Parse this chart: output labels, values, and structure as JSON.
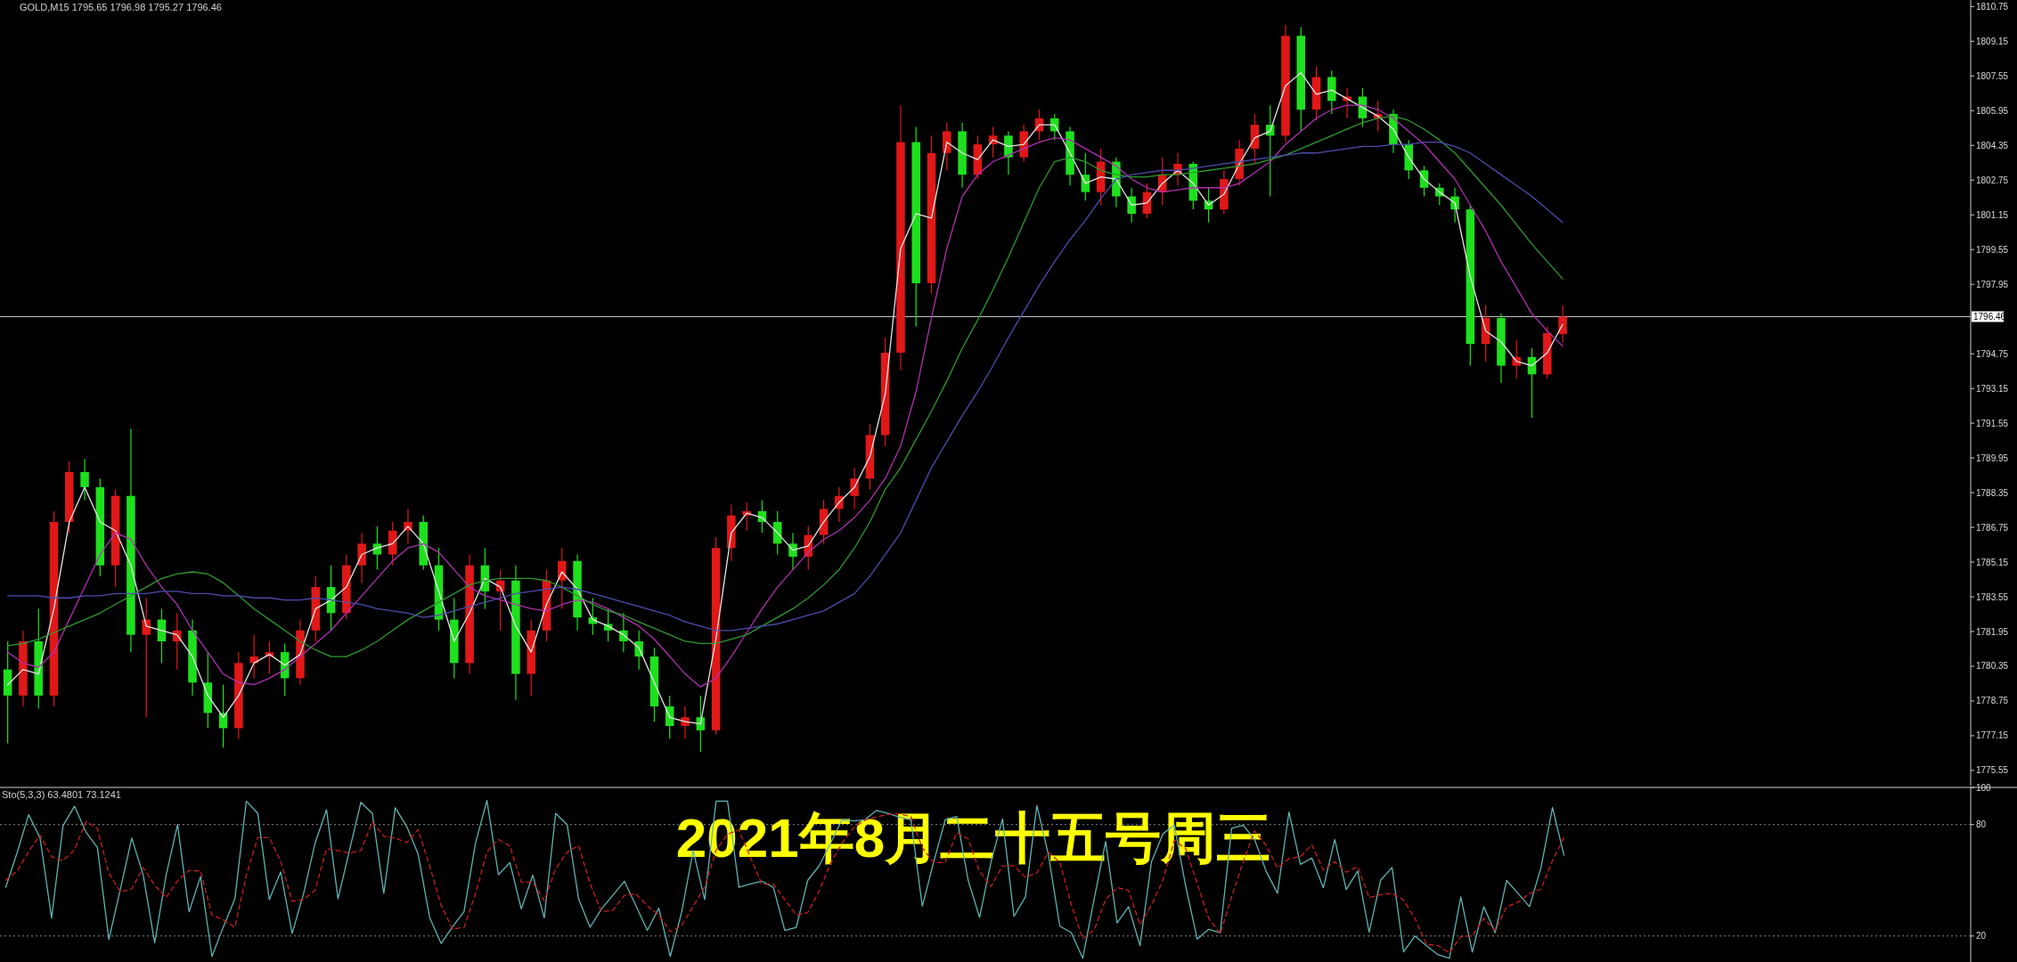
{
  "chart_data": [
    {
      "type": "candlestick",
      "title": "GOLD,M15  1795.65 1796.98 1795.27 1796.46",
      "categories": [
        null,
        null,
        null,
        null,
        null,
        null,
        null,
        null,
        null,
        null,
        null,
        null,
        null,
        null,
        null,
        null,
        null,
        null,
        null,
        null,
        null,
        null,
        null,
        null,
        null,
        null,
        null,
        null,
        null,
        null,
        null,
        null,
        null,
        null,
        null,
        null,
        null,
        null,
        null,
        null,
        null,
        null,
        null,
        null,
        null,
        null,
        null,
        null,
        null,
        null,
        null,
        null,
        null,
        null,
        null,
        null,
        null,
        null,
        null,
        null,
        null,
        null,
        null,
        null,
        null,
        null,
        null,
        null,
        null,
        null,
        null,
        null,
        null,
        null,
        null,
        null,
        null,
        null,
        null,
        null,
        null,
        null,
        null,
        null,
        null,
        null,
        null,
        null,
        null,
        null,
        null,
        null,
        null,
        null,
        null,
        null,
        null,
        null,
        null,
        null,
        null,
        null,
        null,
        null,
        null,
        null,
        null,
        null,
        null,
        null,
        null,
        null,
        null,
        null,
        null,
        null,
        null,
        null,
        null,
        null,
        null,
        null,
        null,
        null,
        null,
        null,
        null,
        null
      ],
      "ohlc": [
        [
          1780.2,
          1781.5,
          1776.8,
          1779.0
        ],
        [
          1779.0,
          1782.0,
          1778.5,
          1781.5
        ],
        [
          1781.5,
          1783.0,
          1778.4,
          1779.0
        ],
        [
          1779.0,
          1787.5,
          1778.5,
          1787.0
        ],
        [
          1787.0,
          1789.8,
          1786.5,
          1789.3
        ],
        [
          1789.3,
          1789.9,
          1788.0,
          1788.6
        ],
        [
          1788.6,
          1789.0,
          1784.5,
          1785.0
        ],
        [
          1785.0,
          1788.5,
          1784.0,
          1788.2
        ],
        [
          1788.2,
          1791.3,
          1781.0,
          1781.8
        ],
        [
          1781.8,
          1783.5,
          1778.0,
          1782.5
        ],
        [
          1782.5,
          1783.0,
          1780.5,
          1781.5
        ],
        [
          1781.5,
          1782.8,
          1780.2,
          1782.0
        ],
        [
          1782.0,
          1782.5,
          1779.0,
          1779.6
        ],
        [
          1779.6,
          1781.0,
          1777.5,
          1778.2
        ],
        [
          1778.2,
          1779.5,
          1776.6,
          1777.5
        ],
        [
          1777.5,
          1781.0,
          1777.0,
          1780.5
        ],
        [
          1780.5,
          1781.8,
          1779.8,
          1780.8
        ],
        [
          1780.8,
          1781.5,
          1780.0,
          1781.0
        ],
        [
          1781.0,
          1781.4,
          1779.0,
          1779.8
        ],
        [
          1779.8,
          1782.5,
          1779.5,
          1782.0
        ],
        [
          1782.0,
          1784.5,
          1781.5,
          1784.0
        ],
        [
          1784.0,
          1785.0,
          1782.0,
          1782.8
        ],
        [
          1782.8,
          1785.5,
          1782.5,
          1785.0
        ],
        [
          1785.0,
          1786.5,
          1784.2,
          1786.0
        ],
        [
          1786.0,
          1786.8,
          1784.8,
          1785.5
        ],
        [
          1785.5,
          1787.0,
          1785.0,
          1786.6
        ],
        [
          1786.6,
          1787.6,
          1786.0,
          1787.0
        ],
        [
          1787.0,
          1787.3,
          1784.8,
          1785.0
        ],
        [
          1785.0,
          1785.8,
          1782.0,
          1782.5
        ],
        [
          1782.5,
          1783.5,
          1779.8,
          1780.5
        ],
        [
          1780.5,
          1785.5,
          1780.0,
          1785.0
        ],
        [
          1785.0,
          1785.8,
          1783.0,
          1783.8
        ],
        [
          1783.8,
          1784.8,
          1782.0,
          1784.3
        ],
        [
          1784.3,
          1785.0,
          1778.8,
          1780.0
        ],
        [
          1780.0,
          1782.5,
          1779.0,
          1782.0
        ],
        [
          1782.0,
          1784.8,
          1781.5,
          1784.3
        ],
        [
          1784.3,
          1785.8,
          1783.0,
          1785.2
        ],
        [
          1785.2,
          1785.5,
          1782.0,
          1782.6
        ],
        [
          1782.6,
          1783.5,
          1781.8,
          1782.3
        ],
        [
          1782.3,
          1783.0,
          1781.5,
          1782.0
        ],
        [
          1782.0,
          1782.8,
          1781.0,
          1781.5
        ],
        [
          1781.5,
          1782.0,
          1780.2,
          1780.8
        ],
        [
          1780.8,
          1781.2,
          1777.8,
          1778.5
        ],
        [
          1778.5,
          1779.0,
          1777.0,
          1777.6
        ],
        [
          1777.6,
          1778.5,
          1777.0,
          1778.0
        ],
        [
          1778.0,
          1779.0,
          1776.4,
          1777.4
        ],
        [
          1777.4,
          1786.3,
          1777.2,
          1785.8
        ],
        [
          1785.8,
          1787.8,
          1785.2,
          1787.3
        ],
        [
          1787.3,
          1787.9,
          1786.6,
          1787.5
        ],
        [
          1787.5,
          1788.0,
          1786.5,
          1787.0
        ],
        [
          1787.0,
          1787.5,
          1785.5,
          1786.0
        ],
        [
          1786.0,
          1786.5,
          1784.8,
          1785.4
        ],
        [
          1785.4,
          1786.8,
          1784.8,
          1786.4
        ],
        [
          1786.4,
          1788.0,
          1786.0,
          1787.6
        ],
        [
          1787.6,
          1788.6,
          1787.0,
          1788.2
        ],
        [
          1788.2,
          1789.5,
          1787.6,
          1789.0
        ],
        [
          1789.0,
          1791.5,
          1788.5,
          1791.0
        ],
        [
          1791.0,
          1795.5,
          1790.5,
          1794.8
        ],
        [
          1794.8,
          1806.2,
          1794.0,
          1804.5
        ],
        [
          1804.5,
          1805.2,
          1796.0,
          1798.0
        ],
        [
          1798.0,
          1804.8,
          1797.5,
          1804.0
        ],
        [
          1804.0,
          1805.4,
          1803.2,
          1805.0
        ],
        [
          1805.0,
          1805.4,
          1802.4,
          1803.0
        ],
        [
          1803.0,
          1804.8,
          1802.8,
          1804.4
        ],
        [
          1804.4,
          1805.2,
          1803.8,
          1804.8
        ],
        [
          1804.8,
          1805.0,
          1803.0,
          1803.8
        ],
        [
          1803.8,
          1805.3,
          1803.6,
          1805.0
        ],
        [
          1805.0,
          1806.0,
          1804.6,
          1805.6
        ],
        [
          1805.6,
          1805.8,
          1804.6,
          1805.0
        ],
        [
          1805.0,
          1805.2,
          1802.5,
          1803.0
        ],
        [
          1803.0,
          1804.0,
          1801.8,
          1802.2
        ],
        [
          1802.2,
          1804.2,
          1801.6,
          1803.6
        ],
        [
          1803.6,
          1803.8,
          1801.5,
          1802.0
        ],
        [
          1802.0,
          1802.4,
          1800.8,
          1801.2
        ],
        [
          1801.2,
          1802.6,
          1801.0,
          1802.2
        ],
        [
          1802.2,
          1803.8,
          1801.6,
          1803.0
        ],
        [
          1803.0,
          1804.0,
          1802.5,
          1803.5
        ],
        [
          1803.5,
          1803.6,
          1801.4,
          1801.8
        ],
        [
          1801.8,
          1802.4,
          1800.8,
          1801.4
        ],
        [
          1801.4,
          1803.2,
          1801.2,
          1802.8
        ],
        [
          1802.8,
          1804.6,
          1802.5,
          1804.2
        ],
        [
          1804.2,
          1805.8,
          1803.5,
          1805.3
        ],
        [
          1805.3,
          1806.2,
          1802.0,
          1804.8
        ],
        [
          1804.8,
          1809.9,
          1804.5,
          1809.4
        ],
        [
          1809.4,
          1809.8,
          1805.0,
          1806.0
        ],
        [
          1806.0,
          1808.0,
          1805.5,
          1807.5
        ],
        [
          1807.5,
          1807.8,
          1805.8,
          1806.4
        ],
        [
          1806.4,
          1807.0,
          1805.6,
          1806.6
        ],
        [
          1806.6,
          1807.0,
          1805.2,
          1805.6
        ],
        [
          1805.6,
          1806.4,
          1805.0,
          1805.8
        ],
        [
          1805.8,
          1806.0,
          1804.0,
          1804.4
        ],
        [
          1804.4,
          1804.6,
          1802.8,
          1803.2
        ],
        [
          1803.2,
          1803.4,
          1802.0,
          1802.4
        ],
        [
          1802.4,
          1802.6,
          1801.6,
          1802.0
        ],
        [
          1802.0,
          1802.4,
          1800.8,
          1801.4
        ],
        [
          1801.4,
          1801.6,
          1794.2,
          1795.2
        ],
        [
          1795.2,
          1797.0,
          1794.4,
          1796.4
        ],
        [
          1796.4,
          1796.6,
          1793.4,
          1794.2
        ],
        [
          1794.2,
          1795.4,
          1793.6,
          1794.6
        ],
        [
          1794.6,
          1795.0,
          1791.8,
          1793.8
        ],
        [
          1793.8,
          1796.0,
          1793.6,
          1795.7
        ],
        [
          1795.65,
          1796.98,
          1795.27,
          1796.46
        ],
        null,
        null,
        null,
        null,
        null,
        null,
        null,
        null,
        null,
        null,
        null,
        null,
        null,
        null,
        null,
        null,
        null,
        null,
        null,
        null,
        null,
        null,
        null,
        null,
        null,
        null
      ],
      "series": [
        {
          "type": "line",
          "color": "#e6e6e6",
          "values": [
            1779.5,
            1780.2,
            1780.0,
            1783.0,
            1787.0,
            1788.6,
            1787.0,
            1786.6,
            1785.0,
            1782.2,
            1782.0,
            1781.8,
            1780.8,
            1779.0,
            1778.0,
            1779.0,
            1780.5,
            1780.9,
            1780.4,
            1780.9,
            1783.0,
            1783.4,
            1784.0,
            1785.5,
            1785.8,
            1786.0,
            1786.8,
            1786.0,
            1783.8,
            1781.5,
            1782.8,
            1784.4,
            1784.0,
            1782.2,
            1781.0,
            1783.2,
            1784.7,
            1783.9,
            1782.5,
            1782.2,
            1781.8,
            1781.2,
            1779.6,
            1778.0,
            1777.8,
            1777.7,
            1781.6,
            1786.5,
            1787.4,
            1787.2,
            1786.5,
            1785.7,
            1785.9,
            1787.0,
            1787.9,
            1788.6,
            1790.0,
            1792.9,
            1799.6,
            1801.2,
            1801.0,
            1804.5,
            1804.0,
            1803.7,
            1804.6,
            1804.3,
            1804.4,
            1805.3,
            1805.3,
            1804.0,
            1802.6,
            1802.9,
            1802.8,
            1801.6,
            1801.7,
            1802.6,
            1803.2,
            1802.6,
            1801.6,
            1802.1,
            1803.5,
            1804.7,
            1805.0,
            1807.1,
            1807.7,
            1806.7,
            1806.9,
            1806.5,
            1806.1,
            1805.7,
            1805.1,
            1803.8,
            1802.8,
            1802.2,
            1801.7,
            1798.3,
            1795.8,
            1795.3,
            1794.4,
            1794.2,
            1794.8,
            1796.1,
            null,
            null,
            null,
            null,
            null,
            null,
            null,
            null,
            null,
            null,
            null,
            null,
            null,
            null,
            null,
            null,
            null,
            null,
            null,
            null,
            null,
            null,
            null,
            null,
            null,
            null
          ]
        },
        {
          "type": "line",
          "color": "#b030b0",
          "values": [
            1781.0,
            1780.5,
            1780.3,
            1781.0,
            1782.5,
            1784.0,
            1785.5,
            1786.5,
            1786.2,
            1785.0,
            1784.0,
            1783.2,
            1782.0,
            1781.0,
            1780.0,
            1779.6,
            1779.5,
            1779.8,
            1780.2,
            1780.8,
            1781.4,
            1782.0,
            1782.8,
            1783.6,
            1784.4,
            1785.2,
            1785.8,
            1786.0,
            1785.6,
            1784.8,
            1784.0,
            1783.6,
            1783.4,
            1783.2,
            1783.0,
            1782.9,
            1783.2,
            1783.4,
            1783.3,
            1783.0,
            1782.6,
            1782.2,
            1781.6,
            1780.8,
            1780.0,
            1779.4,
            1779.8,
            1780.8,
            1781.9,
            1783.0,
            1784.0,
            1784.8,
            1785.6,
            1786.2,
            1786.6,
            1787.2,
            1788.0,
            1789.0,
            1790.5,
            1793.0,
            1796.4,
            1799.6,
            1802.0,
            1803.0,
            1803.6,
            1803.9,
            1804.2,
            1804.5,
            1804.7,
            1804.6,
            1804.2,
            1803.8,
            1803.4,
            1802.8,
            1802.4,
            1802.2,
            1802.3,
            1802.4,
            1802.4,
            1802.4,
            1802.6,
            1803.1,
            1803.6,
            1804.4,
            1805.0,
            1805.6,
            1806.0,
            1806.2,
            1806.2,
            1806.0,
            1805.6,
            1805.0,
            1804.4,
            1803.6,
            1802.8,
            1801.6,
            1800.4,
            1799.0,
            1797.8,
            1796.6,
            1795.8,
            1795.1,
            null,
            null,
            null,
            null,
            null,
            null,
            null,
            null,
            null,
            null,
            null,
            null,
            null,
            null,
            null,
            null,
            null,
            null,
            null,
            null,
            null,
            null,
            null,
            null,
            null,
            null
          ]
        },
        {
          "type": "line",
          "color": "#2f9a2f",
          "values": [
            1781.3,
            1781.4,
            1781.6,
            1781.9,
            1782.2,
            1782.5,
            1782.8,
            1783.2,
            1783.6,
            1784.0,
            1784.4,
            1784.6,
            1784.7,
            1784.6,
            1784.2,
            1783.6,
            1783.0,
            1782.5,
            1782.0,
            1781.5,
            1781.1,
            1780.8,
            1780.8,
            1781.1,
            1781.5,
            1782.0,
            1782.5,
            1782.9,
            1783.3,
            1783.7,
            1784.1,
            1784.3,
            1784.4,
            1784.4,
            1784.4,
            1784.3,
            1784.0,
            1783.6,
            1783.2,
            1782.9,
            1782.7,
            1782.4,
            1782.1,
            1781.8,
            1781.5,
            1781.4,
            1781.4,
            1781.6,
            1781.8,
            1782.2,
            1782.6,
            1783.0,
            1783.5,
            1784.1,
            1784.8,
            1785.8,
            1787.0,
            1788.5,
            1789.5,
            1790.8,
            1792.1,
            1793.5,
            1795.0,
            1796.3,
            1797.7,
            1799.2,
            1800.8,
            1802.4,
            1803.6,
            1803.8,
            1803.6,
            1803.2,
            1803.0,
            1802.9,
            1802.9,
            1803.0,
            1803.0,
            1803.1,
            1803.2,
            1803.3,
            1803.4,
            1803.5,
            1803.7,
            1803.9,
            1804.2,
            1804.5,
            1804.8,
            1805.1,
            1805.4,
            1805.6,
            1805.7,
            1805.5,
            1805.1,
            1804.6,
            1804.0,
            1803.2,
            1802.4,
            1801.6,
            1800.7,
            1799.8,
            1799.0,
            1798.2,
            null,
            null,
            null,
            null,
            null,
            null,
            null,
            null,
            null,
            null,
            null,
            null,
            null,
            null,
            null,
            null,
            null,
            null,
            null,
            null,
            null,
            null,
            null,
            null,
            null,
            null
          ]
        },
        {
          "type": "line",
          "color": "#4d4dae",
          "values": [
            1783.6,
            1783.6,
            1783.6,
            1783.5,
            1783.5,
            1783.6,
            1783.6,
            1783.7,
            1783.7,
            1783.7,
            1783.8,
            1783.8,
            1783.7,
            1783.7,
            1783.6,
            1783.6,
            1783.5,
            1783.5,
            1783.4,
            1783.4,
            1783.5,
            1783.4,
            1783.3,
            1783.2,
            1783.0,
            1782.9,
            1782.8,
            1782.6,
            1782.7,
            1782.9,
            1783.1,
            1783.3,
            1783.5,
            1783.7,
            1783.8,
            1783.9,
            1784.0,
            1783.9,
            1783.7,
            1783.5,
            1783.3,
            1783.1,
            1782.9,
            1782.7,
            1782.4,
            1782.2,
            1782.0,
            1782.0,
            1782.1,
            1782.2,
            1782.3,
            1782.5,
            1782.7,
            1782.9,
            1783.3,
            1783.7,
            1784.5,
            1785.5,
            1786.5,
            1788.0,
            1789.5,
            1790.7,
            1791.9,
            1793.0,
            1794.2,
            1795.5,
            1796.7,
            1797.9,
            1799.0,
            1800.0,
            1800.9,
            1801.9,
            1802.8,
            1803.0,
            1803.1,
            1803.2,
            1803.2,
            1803.3,
            1803.4,
            1803.5,
            1803.6,
            1803.7,
            1803.8,
            1803.9,
            1804.0,
            1804.0,
            1804.1,
            1804.2,
            1804.3,
            1804.3,
            1804.4,
            1804.4,
            1804.5,
            1804.5,
            1804.3,
            1804.0,
            1803.5,
            1803.0,
            1802.5,
            1802.0,
            1801.4,
            1800.8,
            null,
            null,
            null,
            null,
            null,
            null,
            null,
            null,
            null,
            null,
            null,
            null,
            null,
            null,
            null,
            null,
            null,
            null,
            null,
            null,
            null,
            null,
            null,
            null,
            null,
            null
          ]
        }
      ],
      "ylim": [
        1774.85,
        1811.05
      ],
      "yticks": [
        1810.75,
        1809.15,
        1807.55,
        1805.95,
        1804.35,
        1802.75,
        1801.15,
        1799.55,
        1797.95,
        1794.75,
        1793.15,
        1791.55,
        1789.95,
        1788.35,
        1786.75,
        1785.15,
        1783.55,
        1781.95,
        1780.35,
        1778.75,
        1777.15,
        1775.55
      ],
      "ref_lines": [
        {
          "axis": "y",
          "value": 1796.46,
          "label": "1796.46",
          "color": "#c8c8c8"
        }
      ],
      "tick_labels": "y"
    },
    {
      "type": "line",
      "title": "Sto(5,3,3) 63.4801 73.1241",
      "categories": [
        null,
        null,
        null,
        null,
        null,
        null,
        null,
        null,
        null,
        null,
        null,
        null,
        null,
        null,
        null,
        null,
        null,
        null,
        null,
        null,
        null,
        null,
        null,
        null,
        null,
        null,
        null,
        null,
        null,
        null,
        null,
        null,
        null,
        null,
        null,
        null,
        null,
        null,
        null,
        null,
        null,
        null,
        null,
        null,
        null,
        null,
        null,
        null,
        null,
        null,
        null,
        null,
        null,
        null,
        null,
        null,
        null,
        null,
        null,
        null,
        null,
        null,
        null,
        null,
        null,
        null,
        null,
        null,
        null,
        null,
        null,
        null,
        null,
        null,
        null,
        null,
        null,
        null,
        null,
        null,
        null,
        null,
        null,
        null,
        null,
        null,
        null,
        null,
        null,
        null,
        null,
        null,
        null,
        null,
        null,
        null,
        null,
        null,
        null,
        null,
        null,
        null,
        null,
        null,
        null,
        null,
        null,
        null,
        null,
        null,
        null,
        null,
        null,
        null,
        null,
        null,
        null,
        null,
        null,
        null,
        null,
        null,
        null,
        null,
        null,
        null,
        null,
        null,
        null,
        null,
        null,
        null,
        null,
        null,
        null,
        null,
        null,
        null,
        null,
        null,
        null,
        null,
        null,
        null,
        null,
        null,
        null,
        null,
        null,
        null,
        null,
        null,
        null,
        null,
        null,
        null,
        null,
        null,
        null,
        null,
        null,
        null,
        null,
        null,
        null,
        null,
        null,
        null,
        null,
        null,
        null,
        null
      ],
      "series": [
        {
          "color": "#5fb3b3",
          "values": [
            46.2,
            65,
            85.3,
            72.7,
            29.7,
            79.3,
            89.9,
            76.0,
            67.7,
            18.1,
            45,
            72.7,
            52.8,
            16.4,
            52.8,
            80,
            33,
            52,
            9,
            25,
            40,
            92.6,
            86,
            39.6,
            54.5,
            21.4,
            42.9,
            70,
            88,
            40,
            66,
            92,
            86,
            43,
            89,
            79,
            64,
            30,
            16,
            25,
            33,
            70,
            93,
            53,
            59.5,
            34.6,
            52.8,
            29.7,
            86,
            80,
            40,
            24.7,
            34.6,
            42,
            49.5,
            36.3,
            23,
            35,
            9,
            33,
            66,
            39.6,
            92.6,
            92.6,
            46.2,
            48,
            49.5,
            46.2,
            23,
            24.7,
            50,
            57.8,
            70,
            82.6,
            82,
            82.6,
            87.6,
            86,
            84,
            82.6,
            36,
            60,
            82.6,
            84.3,
            50,
            30,
            60,
            83,
            30.6,
            41.1,
            90.2,
            63.9,
            25.3,
            21.8,
            8,
            40,
            70.9,
            27,
            35.8,
            14.8,
            60,
            75,
            79.7,
            46.4,
            18.3,
            23.6,
            21.8,
            78,
            79.7,
            72,
            55,
            43,
            86.7,
            58.6,
            62,
            46,
            72,
            45,
            55,
            22,
            50,
            56.9,
            11.4,
            20,
            14.8,
            10,
            8,
            41.1,
            11.3,
            35.8,
            21.8,
            49.9,
            42.9,
            35.8,
            56.9,
            89.2,
            63.48,
            null,
            null,
            null,
            null,
            null,
            null,
            null,
            null,
            null,
            null,
            null,
            null,
            null,
            null,
            null,
            null,
            null,
            null,
            null,
            null,
            null,
            null,
            null,
            null,
            null,
            null,
            null,
            null,
            null,
            null,
            null,
            null,
            null,
            null,
            null
          ]
        },
        {
          "color": "#c81e1e",
          "line_style": "dashed",
          "values": [
            50,
            55,
            65.5,
            74.3,
            62.7,
            60.6,
            66.3,
            81.7,
            77.9,
            53.9,
            43.7,
            45.3,
            56.8,
            47.3,
            40.7,
            49.7,
            55.3,
            55,
            31.3,
            28.7,
            24.7,
            52.7,
            73,
            73,
            60.3,
            38.7,
            39.7,
            44.7,
            67,
            66,
            64.7,
            66,
            81.3,
            73.7,
            72.7,
            70.3,
            77.3,
            57.7,
            36.7,
            23.7,
            24.7,
            42.7,
            65.3,
            72,
            68.5,
            49,
            49,
            39,
            56.2,
            65.2,
            68.7,
            48.2,
            33.1,
            33.8,
            42,
            42.6,
            36.3,
            31.4,
            22.3,
            25.7,
            36,
            46.2,
            66.1,
            74.9,
            77.1,
            62.3,
            47.9,
            47.9,
            39.6,
            31.3,
            32.6,
            44.2,
            59.3,
            70.1,
            78.2,
            82.4,
            84.1,
            85.4,
            85.9,
            84.2,
            67.5,
            59.5,
            59.5,
            75.6,
            72.3,
            54.8,
            46.7,
            57.7,
            57.9,
            51.6,
            54,
            65.1,
            59.8,
            37,
            18.4,
            23.3,
            39.6,
            46,
            44.6,
            25.9,
            36.9,
            49.9,
            71.6,
            67,
            48.1,
            29.4,
            21.2,
            41.1,
            59.8,
            76.6,
            68.9,
            56.7,
            61.6,
            62.8,
            69.1,
            55.5,
            60,
            54.3,
            57.3,
            40.7,
            42.3,
            43,
            39.4,
            29.4,
            15.4,
            14.9,
            10.9,
            19.7,
            20.1,
            29.4,
            23,
            35.8,
            38.2,
            42.9,
            45.2,
            60.6,
            73.12,
            null,
            null,
            null,
            null,
            null,
            null,
            null,
            null,
            null,
            null,
            null,
            null,
            null,
            null,
            null,
            null,
            null,
            null,
            null,
            null,
            null,
            null,
            null,
            null,
            null,
            null,
            null,
            null,
            null,
            null,
            null,
            null,
            null,
            null,
            null
          ]
        }
      ],
      "ylim": [
        6,
        100
      ],
      "yticks": [
        100,
        80,
        20
      ],
      "ref_lines": [
        {
          "axis": "y",
          "value": 80,
          "color": "#8a8a8a",
          "line_style": "dotted"
        },
        {
          "axis": "y",
          "value": 20,
          "color": "#8a8a8a",
          "line_style": "dotted"
        }
      ],
      "annotations": [
        "2021年8月二十五号周三"
      ],
      "tick_labels": "y"
    }
  ]
}
